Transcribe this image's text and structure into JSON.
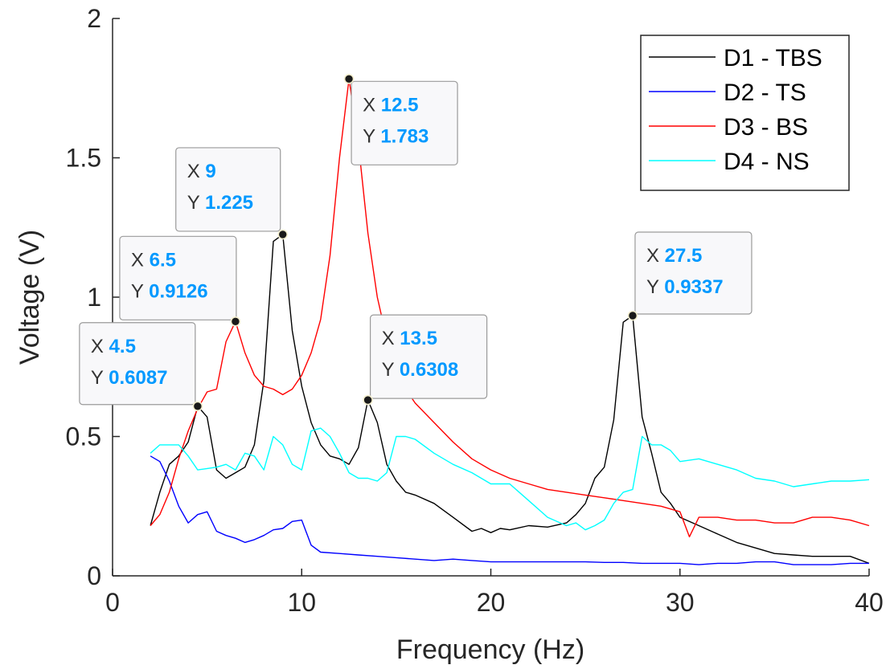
{
  "chart_data": {
    "type": "line",
    "xlabel": "Frequency (Hz)",
    "ylabel": "Voltage (V)",
    "xlim": [
      0,
      40
    ],
    "ylim": [
      0,
      2
    ],
    "xticks": [
      0,
      10,
      20,
      30,
      40
    ],
    "yticks": [
      0,
      0.5,
      1,
      1.5,
      2
    ],
    "xtick_labels": [
      "0",
      "10",
      "20",
      "30",
      "40"
    ],
    "ytick_labels": [
      "0",
      "0.5",
      "1",
      "1.5",
      "2"
    ],
    "grid": false,
    "legend_position": "top-right",
    "series": [
      {
        "name": "D1 - TBS",
        "color": "#000000",
        "x": [
          2,
          2.5,
          3,
          3.5,
          4,
          4.5,
          5,
          5.5,
          6,
          6.5,
          7,
          7.5,
          8,
          8.5,
          9,
          9.5,
          10,
          10.5,
          11,
          11.5,
          12,
          12.5,
          13,
          13.5,
          14,
          14.5,
          15,
          15.5,
          16,
          17,
          18,
          19,
          19.5,
          20,
          20.5,
          21,
          22,
          23,
          24,
          24.5,
          25,
          25.5,
          26,
          26.5,
          27,
          27.5,
          28,
          28.5,
          29,
          29.5,
          30,
          31,
          32,
          33,
          34,
          35,
          36,
          37,
          38,
          39,
          40
        ],
        "y": [
          0.18,
          0.3,
          0.4,
          0.43,
          0.48,
          0.6087,
          0.57,
          0.38,
          0.35,
          0.37,
          0.39,
          0.47,
          0.7,
          1.2,
          1.225,
          0.88,
          0.68,
          0.55,
          0.47,
          0.43,
          0.42,
          0.4,
          0.46,
          0.6308,
          0.55,
          0.4,
          0.34,
          0.3,
          0.29,
          0.26,
          0.21,
          0.16,
          0.17,
          0.155,
          0.17,
          0.165,
          0.18,
          0.175,
          0.19,
          0.22,
          0.26,
          0.35,
          0.39,
          0.56,
          0.91,
          0.9337,
          0.57,
          0.44,
          0.3,
          0.26,
          0.21,
          0.18,
          0.15,
          0.12,
          0.1,
          0.08,
          0.075,
          0.07,
          0.07,
          0.07,
          0.045
        ]
      },
      {
        "name": "D2 - TS",
        "color": "#0000ff",
        "x": [
          2,
          2.5,
          3,
          3.5,
          4,
          4.5,
          5,
          5.5,
          6,
          6.5,
          7,
          7.5,
          8,
          8.5,
          9,
          9.5,
          10,
          10.5,
          11,
          12,
          13,
          14,
          15,
          16,
          17,
          18,
          19,
          20,
          21,
          22,
          23,
          24,
          25,
          26,
          27,
          28,
          29,
          30,
          31,
          32,
          33,
          34,
          35,
          36,
          37,
          38,
          39,
          40
        ],
        "y": [
          0.43,
          0.41,
          0.34,
          0.25,
          0.19,
          0.22,
          0.23,
          0.16,
          0.145,
          0.135,
          0.12,
          0.13,
          0.145,
          0.165,
          0.17,
          0.195,
          0.2,
          0.11,
          0.085,
          0.08,
          0.075,
          0.07,
          0.065,
          0.06,
          0.055,
          0.06,
          0.055,
          0.05,
          0.05,
          0.05,
          0.05,
          0.05,
          0.05,
          0.048,
          0.048,
          0.045,
          0.045,
          0.045,
          0.04,
          0.045,
          0.045,
          0.05,
          0.05,
          0.04,
          0.04,
          0.04,
          0.045,
          0.045
        ]
      },
      {
        "name": "D3 - BS",
        "color": "#ff0000",
        "x": [
          2,
          2.5,
          3,
          3.5,
          4,
          4.5,
          5,
          5.5,
          6,
          6.5,
          7,
          7.5,
          8,
          8.5,
          9,
          9.5,
          10,
          10.5,
          11,
          11.5,
          12,
          12.5,
          13,
          13.5,
          14,
          14.5,
          15,
          15.5,
          16,
          17,
          18,
          19,
          20,
          21,
          22,
          23,
          24,
          25,
          26,
          27,
          28,
          29,
          30,
          30.5,
          31,
          32,
          33,
          34,
          35,
          36,
          37,
          38,
          39,
          40
        ],
        "y": [
          0.18,
          0.22,
          0.3,
          0.42,
          0.52,
          0.6,
          0.66,
          0.67,
          0.84,
          0.9126,
          0.8,
          0.72,
          0.68,
          0.67,
          0.65,
          0.67,
          0.72,
          0.8,
          0.92,
          1.15,
          1.5,
          1.783,
          1.55,
          1.23,
          1.0,
          0.85,
          0.72,
          0.67,
          0.62,
          0.55,
          0.48,
          0.42,
          0.38,
          0.35,
          0.33,
          0.31,
          0.3,
          0.29,
          0.28,
          0.27,
          0.26,
          0.25,
          0.23,
          0.14,
          0.21,
          0.21,
          0.2,
          0.2,
          0.19,
          0.19,
          0.21,
          0.21,
          0.2,
          0.18
        ]
      },
      {
        "name": "D4 - NS",
        "color": "#00ffff",
        "x": [
          2,
          2.5,
          3,
          3.5,
          4,
          4.5,
          5,
          5.5,
          6,
          6.5,
          7,
          7.5,
          8,
          8.5,
          9,
          9.5,
          10,
          10.5,
          11,
          11.5,
          12,
          12.5,
          13,
          13.5,
          14,
          14.5,
          15,
          15.5,
          16,
          17,
          18,
          19,
          20,
          21,
          22,
          23,
          24,
          24.5,
          25,
          25.5,
          26,
          26.5,
          27,
          27.5,
          28,
          28.5,
          29,
          29.5,
          30,
          31,
          32,
          33,
          34,
          35,
          36,
          37,
          38,
          39,
          40
        ],
        "y": [
          0.44,
          0.47,
          0.47,
          0.47,
          0.43,
          0.38,
          0.385,
          0.39,
          0.4,
          0.38,
          0.44,
          0.43,
          0.38,
          0.5,
          0.47,
          0.4,
          0.38,
          0.52,
          0.53,
          0.5,
          0.44,
          0.37,
          0.35,
          0.35,
          0.34,
          0.37,
          0.5,
          0.5,
          0.49,
          0.44,
          0.4,
          0.37,
          0.33,
          0.33,
          0.27,
          0.21,
          0.18,
          0.19,
          0.165,
          0.18,
          0.2,
          0.26,
          0.3,
          0.31,
          0.5,
          0.47,
          0.47,
          0.45,
          0.41,
          0.42,
          0.4,
          0.38,
          0.35,
          0.34,
          0.32,
          0.33,
          0.34,
          0.34,
          0.345
        ]
      }
    ],
    "annotations": [
      {
        "x": 4.5,
        "y": 0.6087,
        "x_label": "4.5",
        "y_label": "0.6087",
        "series": "D1 - TBS"
      },
      {
        "x": 6.5,
        "y": 0.9126,
        "x_label": "6.5",
        "y_label": "0.9126",
        "series": "D3 - BS"
      },
      {
        "x": 9,
        "y": 1.225,
        "x_label": "9",
        "y_label": "1.225",
        "series": "D1 - TBS"
      },
      {
        "x": 12.5,
        "y": 1.783,
        "x_label": "12.5",
        "y_label": "1.783",
        "series": "D3 - BS"
      },
      {
        "x": 13.5,
        "y": 0.6308,
        "x_label": "13.5",
        "y_label": "0.6308",
        "series": "D1 - TBS"
      },
      {
        "x": 27.5,
        "y": 0.9337,
        "x_label": "27.5",
        "y_label": "0.9337",
        "series": "D1 - TBS"
      }
    ],
    "datatip_prefixes": {
      "x": "X",
      "y": "Y"
    }
  }
}
